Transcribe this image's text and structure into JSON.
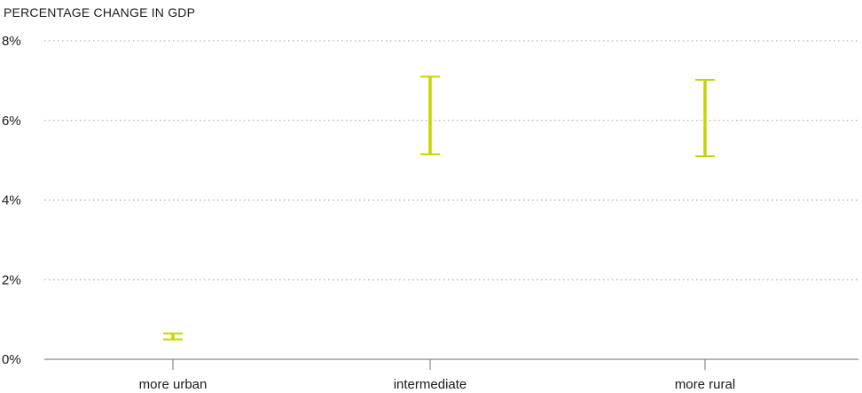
{
  "chart_data": {
    "type": "errorbar",
    "title": "",
    "ylabel": "PERCENTAGE CHANGE IN GDP",
    "xlabel": "",
    "ylim": [
      0,
      8
    ],
    "yticks": [
      "0%",
      "2%",
      "4%",
      "6%",
      "8%"
    ],
    "ytick_values": [
      0,
      2,
      4,
      6,
      8
    ],
    "grid": true,
    "color": "#c8d400",
    "categories": [
      "more urban",
      "intermediate",
      "more rural"
    ],
    "series": [
      {
        "low": [
          0.5,
          5.15,
          5.1
        ],
        "high": [
          0.65,
          7.1,
          7.02
        ]
      }
    ]
  }
}
